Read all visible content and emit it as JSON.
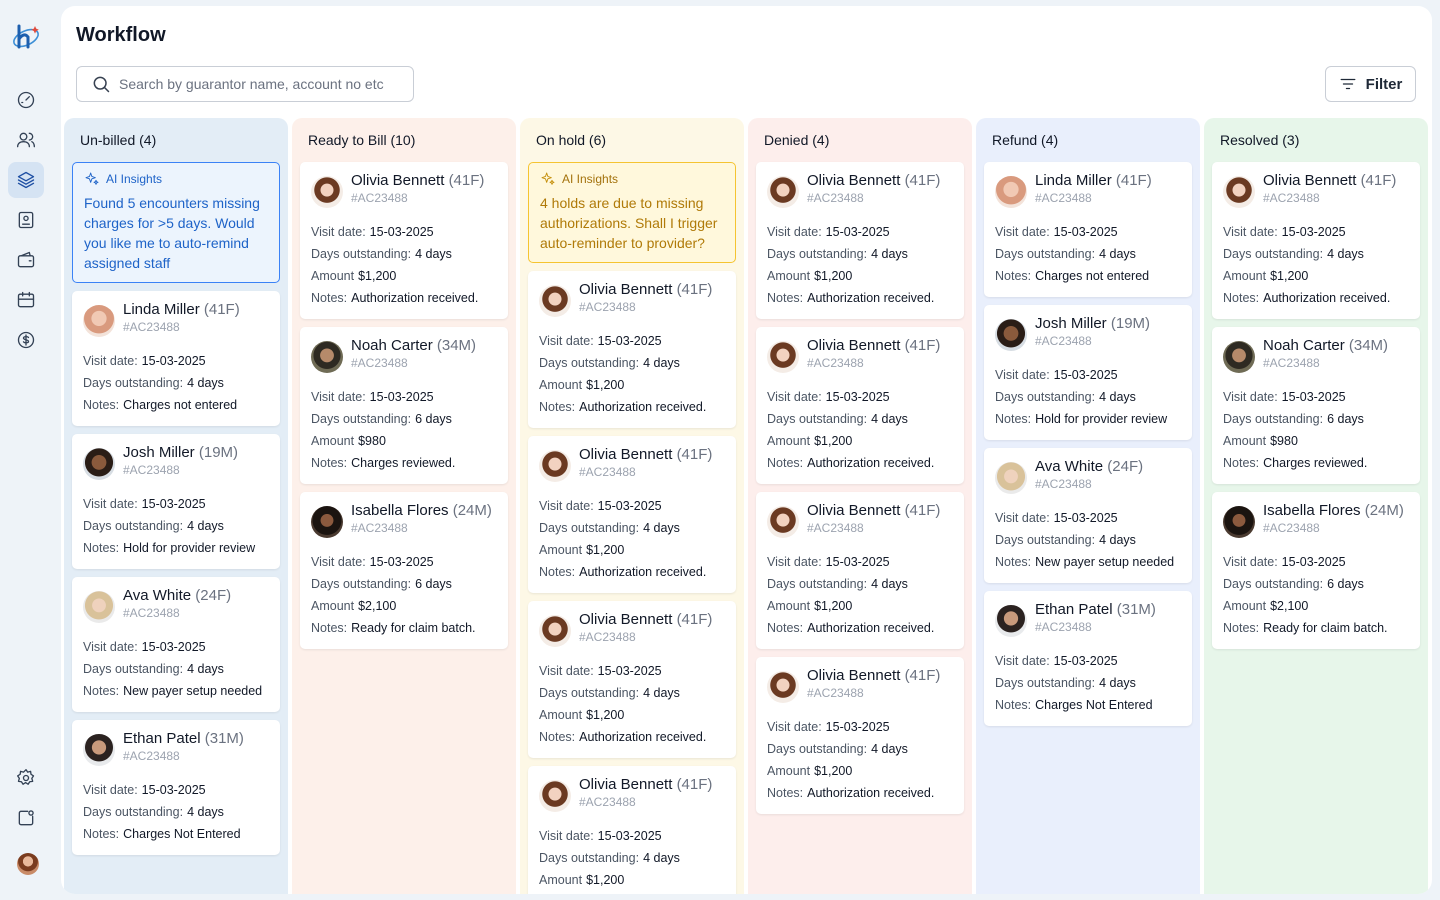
{
  "header": {
    "title": "Workflow",
    "search_placeholder": "Search by guarantor name, account no etc",
    "filter_label": "Filter"
  },
  "sidebar": {
    "items": [
      {
        "icon": "dashboard-gauge-icon",
        "active": false
      },
      {
        "icon": "users-icon",
        "active": false
      },
      {
        "icon": "layers-icon",
        "active": true
      },
      {
        "icon": "clipboard-icon",
        "active": false
      },
      {
        "icon": "wallet-icon",
        "active": false
      },
      {
        "icon": "calendar-ticket-icon",
        "active": false
      },
      {
        "icon": "dollar-circle-icon",
        "active": false
      }
    ],
    "bottom": [
      {
        "icon": "settings-gear-icon"
      },
      {
        "icon": "share-export-icon"
      }
    ]
  },
  "labels": {
    "visit_date": "Visit date:",
    "days_outstanding": "Days outstanding:",
    "amount": "Amount",
    "notes": "Notes:"
  },
  "columns": [
    {
      "title": "Un-billed (4)",
      "bg": "#e3edf6",
      "insight": {
        "label": "AI Insights",
        "text": "Found 5 encounters missing charges for >5 days. Would you like me to auto-remind assigned staff",
        "tone": "blue"
      },
      "cards": [
        {
          "name": "Linda Miller",
          "meta": "(41F)",
          "account": "#AC23488",
          "visit_date": "15-03-2025",
          "days": "4 days",
          "notes": "Charges not entered",
          "avatar": "linda"
        },
        {
          "name": "Josh Miller",
          "meta": "(19M)",
          "account": "#AC23488",
          "visit_date": "15-03-2025",
          "days": "4 days",
          "notes": "Hold for provider review",
          "avatar": "josh"
        },
        {
          "name": "Ava White",
          "meta": "(24F)",
          "account": "#AC23488",
          "visit_date": "15-03-2025",
          "days": "4 days",
          "notes": "New payer setup needed",
          "avatar": "ava"
        },
        {
          "name": "Ethan Patel",
          "meta": "(31M)",
          "account": "#AC23488",
          "visit_date": "15-03-2025",
          "days": "4 days",
          "notes": "Charges Not Entered",
          "avatar": "ethan"
        }
      ]
    },
    {
      "title": "Ready to Bill (10)",
      "bg": "#fdf0ea",
      "cards": [
        {
          "name": "Olivia Bennett",
          "meta": "(41F)",
          "account": "#AC23488",
          "visit_date": "15-03-2025",
          "days": "4 days",
          "amount": "$1,200",
          "notes": "Authorization received.",
          "avatar": "olivia"
        },
        {
          "name": "Noah Carter",
          "meta": "(34M)",
          "account": "#AC23488",
          "visit_date": "15-03-2025",
          "days": "6 days",
          "amount": "$980",
          "notes": "Charges reviewed.",
          "avatar": "noah"
        },
        {
          "name": "Isabella Flores",
          "meta": "(24M)",
          "account": "#AC23488",
          "visit_date": "15-03-2025",
          "days": "6 days",
          "amount": "$2,100",
          "notes": "Ready for claim batch.",
          "avatar": "isabella"
        }
      ]
    },
    {
      "title": "On hold (6)",
      "bg": "#fdf8e6",
      "insight": {
        "label": "AI Insights",
        "text": "4 holds are due to missing authorizations. Shall I trigger auto-reminder to provider?",
        "tone": "yellow"
      },
      "cards": [
        {
          "name": "Olivia Bennett",
          "meta": "(41F)",
          "account": "#AC23488",
          "visit_date": "15-03-2025",
          "days": "4 days",
          "amount": "$1,200",
          "notes": "Authorization received.",
          "avatar": "olivia"
        },
        {
          "name": "Olivia Bennett",
          "meta": "(41F)",
          "account": "#AC23488",
          "visit_date": "15-03-2025",
          "days": "4 days",
          "amount": "$1,200",
          "notes": "Authorization received.",
          "avatar": "olivia"
        },
        {
          "name": "Olivia Bennett",
          "meta": "(41F)",
          "account": "#AC23488",
          "visit_date": "15-03-2025",
          "days": "4 days",
          "amount": "$1,200",
          "notes": "Authorization received.",
          "avatar": "olivia"
        },
        {
          "name": "Olivia Bennett",
          "meta": "(41F)",
          "account": "#AC23488",
          "visit_date": "15-03-2025",
          "days": "4 days",
          "amount": "$1,200",
          "avatar": "olivia"
        }
      ]
    },
    {
      "title": "Denied (4)",
      "bg": "#fdeeec",
      "cards": [
        {
          "name": "Olivia Bennett",
          "meta": "(41F)",
          "account": "#AC23488",
          "visit_date": "15-03-2025",
          "days": "4 days",
          "amount": "$1,200",
          "notes": "Authorization received.",
          "avatar": "olivia"
        },
        {
          "name": "Olivia Bennett",
          "meta": "(41F)",
          "account": "#AC23488",
          "visit_date": "15-03-2025",
          "days": "4 days",
          "amount": "$1,200",
          "notes": "Authorization received.",
          "avatar": "olivia"
        },
        {
          "name": "Olivia Bennett",
          "meta": "(41F)",
          "account": "#AC23488",
          "visit_date": "15-03-2025",
          "days": "4 days",
          "amount": "$1,200",
          "notes": "Authorization received.",
          "avatar": "olivia"
        },
        {
          "name": "Olivia Bennett",
          "meta": "(41F)",
          "account": "#AC23488",
          "visit_date": "15-03-2025",
          "days": "4 days",
          "amount": "$1,200",
          "notes": "Authorization received.",
          "avatar": "olivia"
        }
      ]
    },
    {
      "title": "Refund (4)",
      "bg": "#e9effc",
      "cards": [
        {
          "name": "Linda Miller",
          "meta": "(41F)",
          "account": "#AC23488",
          "visit_date": "15-03-2025",
          "days": "4 days",
          "notes": "Charges not entered",
          "avatar": "linda"
        },
        {
          "name": "Josh Miller",
          "meta": "(19M)",
          "account": "#AC23488",
          "visit_date": "15-03-2025",
          "days": "4 days",
          "notes": "Hold for provider review",
          "avatar": "josh"
        },
        {
          "name": "Ava White",
          "meta": "(24F)",
          "account": "#AC23488",
          "visit_date": "15-03-2025",
          "days": "4 days",
          "notes": "New payer setup needed",
          "avatar": "ava"
        },
        {
          "name": "Ethan Patel",
          "meta": "(31M)",
          "account": "#AC23488",
          "visit_date": "15-03-2025",
          "days": "4 days",
          "notes": "Charges Not Entered",
          "avatar": "ethan"
        }
      ]
    },
    {
      "title": "Resolved (3)",
      "bg": "#e7f6ea",
      "cards": [
        {
          "name": "Olivia Bennett",
          "meta": "(41F)",
          "account": "#AC23488",
          "visit_date": "15-03-2025",
          "days": "4 days",
          "amount": "$1,200",
          "notes": "Authorization received.",
          "avatar": "olivia"
        },
        {
          "name": "Noah Carter",
          "meta": "(34M)",
          "account": "#AC23488",
          "visit_date": "15-03-2025",
          "days": "6 days",
          "amount": "$980",
          "notes": "Charges reviewed.",
          "avatar": "noah"
        },
        {
          "name": "Isabella Flores",
          "meta": "(24M)",
          "account": "#AC23488",
          "visit_date": "15-03-2025",
          "days": "6 days",
          "amount": "$2,100",
          "notes": "Ready for claim batch.",
          "avatar": "isabella"
        }
      ]
    }
  ]
}
